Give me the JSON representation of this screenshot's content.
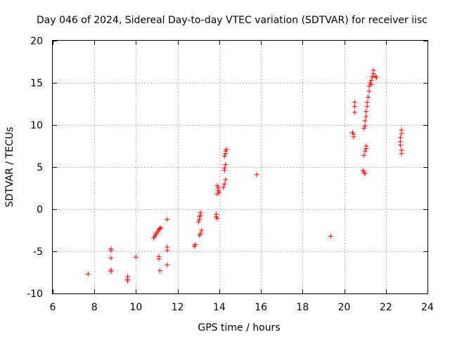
{
  "chart_data": {
    "type": "scatter",
    "title": "Day 046 of 2024, Sidereal Day-to-day VTEC variation (SDTVAR) for receiver iisc",
    "xlabel": "GPS time / hours",
    "ylabel": "SDTVAR / TECUs",
    "xlim": [
      6,
      24
    ],
    "ylim": [
      -10,
      20
    ],
    "xticks": [
      "6",
      "8",
      "10",
      "12",
      "14",
      "16",
      "18",
      "20",
      "22",
      "24"
    ],
    "yticks": [
      "-10",
      "-5",
      "0",
      "5",
      "10",
      "15",
      "20"
    ],
    "grid": true,
    "marker": "+",
    "color": "#ff0000",
    "series": [
      {
        "name": "SDTVAR",
        "points": [
          [
            7.7,
            -7.7
          ],
          [
            8.8,
            -4.7
          ],
          [
            8.8,
            -4.9
          ],
          [
            8.8,
            -5.8
          ],
          [
            8.8,
            -7.2
          ],
          [
            8.8,
            -7.4
          ],
          [
            9.6,
            -8.0
          ],
          [
            9.6,
            -8.3
          ],
          [
            9.6,
            -8.5
          ],
          [
            10.0,
            -5.7
          ],
          [
            10.85,
            -3.4
          ],
          [
            10.9,
            -3.2
          ],
          [
            10.95,
            -3.0
          ],
          [
            11.0,
            -2.8
          ],
          [
            11.05,
            -2.6
          ],
          [
            11.1,
            -2.4
          ],
          [
            11.15,
            -2.3
          ],
          [
            11.2,
            -2.2
          ],
          [
            11.1,
            -5.6
          ],
          [
            11.1,
            -5.9
          ],
          [
            11.15,
            -7.3
          ],
          [
            11.5,
            -1.2
          ],
          [
            11.5,
            -4.5
          ],
          [
            11.5,
            -4.9
          ],
          [
            11.5,
            -6.6
          ],
          [
            12.8,
            -4.4
          ],
          [
            12.85,
            -4.2
          ],
          [
            13.0,
            -1.5
          ],
          [
            13.05,
            -1.2
          ],
          [
            13.05,
            -0.9
          ],
          [
            13.1,
            -0.7
          ],
          [
            13.1,
            -0.4
          ],
          [
            13.05,
            -3.1
          ],
          [
            13.1,
            -2.9
          ],
          [
            13.15,
            -2.5
          ],
          [
            13.85,
            -0.6
          ],
          [
            13.85,
            -0.9
          ],
          [
            13.9,
            -1.1
          ],
          [
            13.9,
            2.8
          ],
          [
            13.95,
            2.5
          ],
          [
            13.95,
            2.2
          ],
          [
            14.0,
            2.0
          ],
          [
            13.9,
            1.8
          ],
          [
            14.2,
            2.6
          ],
          [
            14.25,
            3.0
          ],
          [
            14.3,
            3.5
          ],
          [
            14.25,
            4.6
          ],
          [
            14.25,
            4.9
          ],
          [
            14.3,
            5.3
          ],
          [
            14.25,
            6.3
          ],
          [
            14.3,
            6.6
          ],
          [
            14.3,
            6.9
          ],
          [
            14.35,
            7.1
          ],
          [
            15.8,
            4.1
          ],
          [
            19.35,
            -3.2
          ],
          [
            20.4,
            9.1
          ],
          [
            20.45,
            8.9
          ],
          [
            20.45,
            8.6
          ],
          [
            20.5,
            11.5
          ],
          [
            20.5,
            12.2
          ],
          [
            20.5,
            12.7
          ],
          [
            20.9,
            4.6
          ],
          [
            20.95,
            4.4
          ],
          [
            21.0,
            4.2
          ],
          [
            20.95,
            6.4
          ],
          [
            21.0,
            6.9
          ],
          [
            21.05,
            7.2
          ],
          [
            21.05,
            7.5
          ],
          [
            20.95,
            9.6
          ],
          [
            21.0,
            9.9
          ],
          [
            21.0,
            10.5
          ],
          [
            21.05,
            11.0
          ],
          [
            21.05,
            11.6
          ],
          [
            21.1,
            12.2
          ],
          [
            21.1,
            12.7
          ],
          [
            21.15,
            13.3
          ],
          [
            21.2,
            14.0
          ],
          [
            21.2,
            14.6
          ],
          [
            21.25,
            15.0
          ],
          [
            21.3,
            14.8
          ],
          [
            21.3,
            15.3
          ],
          [
            21.35,
            15.7
          ],
          [
            21.4,
            16.1
          ],
          [
            21.4,
            16.5
          ],
          [
            21.5,
            15.8
          ],
          [
            21.55,
            15.6
          ],
          [
            22.7,
            8.0
          ],
          [
            22.7,
            8.5
          ],
          [
            22.75,
            9.0
          ],
          [
            22.75,
            9.4
          ],
          [
            22.7,
            7.6
          ],
          [
            22.75,
            7.0
          ],
          [
            22.75,
            6.6
          ]
        ]
      }
    ]
  }
}
